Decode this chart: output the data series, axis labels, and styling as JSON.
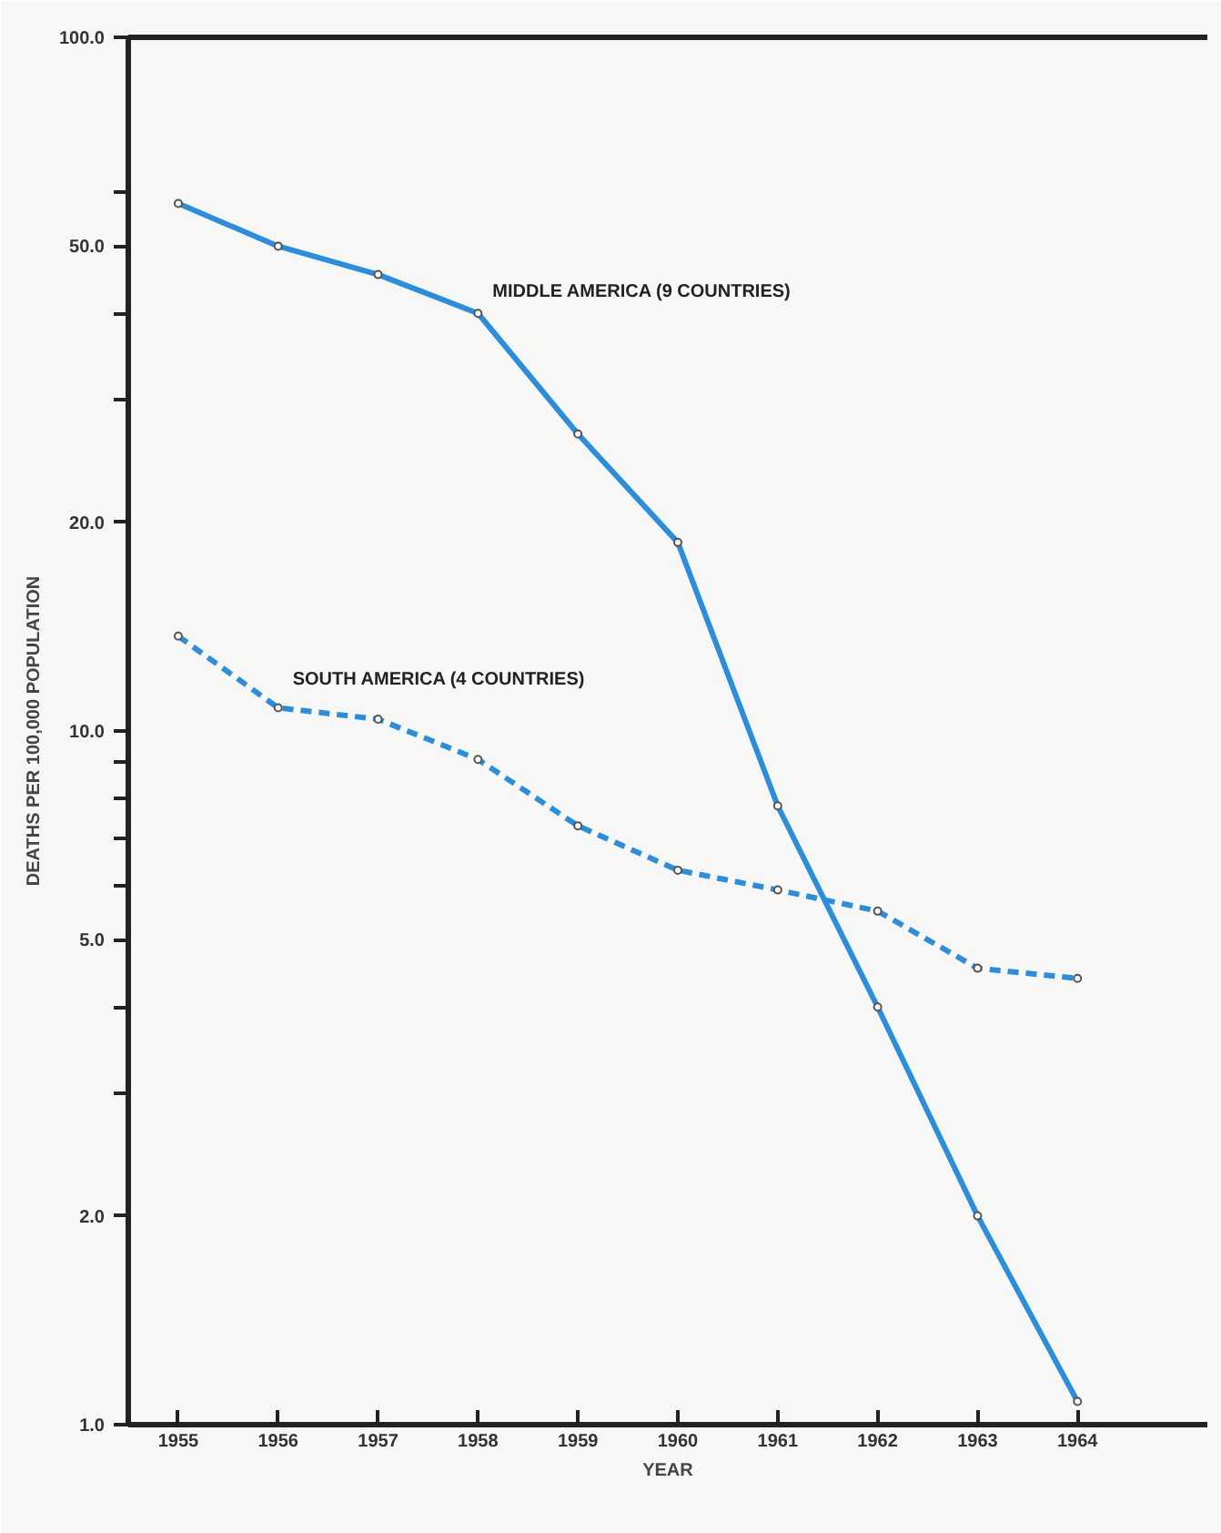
{
  "chart_data": {
    "type": "line",
    "xlabel": "YEAR",
    "ylabel": "DEATHS PER 100,000 POPULATION",
    "log": "y",
    "x": [
      1955,
      1956,
      1957,
      1958,
      1959,
      1960,
      1961,
      1962,
      1963,
      1964
    ],
    "xlim": [
      1954.5,
      1965.3
    ],
    "xticks": [
      1955,
      1956,
      1957,
      1958,
      1959,
      1960,
      1961,
      1962,
      1963,
      1964
    ],
    "ylim": [
      1,
      100
    ],
    "yticks": [
      {
        "value": 1,
        "label": "1.0"
      },
      {
        "value": 2,
        "label": "2.0"
      },
      {
        "value": 3,
        "label": null
      },
      {
        "value": 4,
        "label": null
      },
      {
        "value": 5,
        "label": "5.0"
      },
      {
        "value": 6,
        "label": null
      },
      {
        "value": 7,
        "label": null
      },
      {
        "value": 8,
        "label": null
      },
      {
        "value": 9,
        "label": null
      },
      {
        "value": 10,
        "label": "10.0"
      },
      {
        "value": 20,
        "label": "20.0"
      },
      {
        "value": 30,
        "label": null
      },
      {
        "value": 40,
        "label": null
      },
      {
        "value": 50,
        "label": "50.0"
      },
      {
        "value": 60,
        "label": null
      },
      {
        "value": 100,
        "label": "100.0"
      }
    ],
    "grid": false,
    "marker": "circle",
    "series": [
      {
        "name": "MIDDLE AMERICA (9 COUNTRIES)",
        "color": "#2a8ee0",
        "line_style": "solid",
        "values": [
          57.6,
          50,
          45.5,
          40,
          26.8,
          18.7,
          7.8,
          4.0,
          2.0,
          1.08
        ]
      },
      {
        "name": "SOUTH AMERICA (4 COUNTRIES)",
        "color": "#2a8ee0",
        "line_style": "dashed",
        "values": [
          13.7,
          10.8,
          10.4,
          9.1,
          7.3,
          6.3,
          5.9,
          5.5,
          4.55,
          4.4
        ]
      }
    ]
  }
}
